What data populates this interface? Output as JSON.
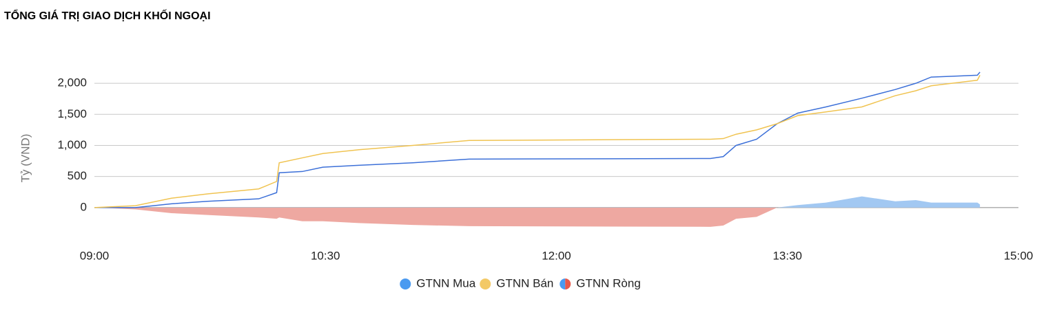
{
  "chart_data": {
    "type": "line",
    "title": "TỔNG GIÁ TRỊ GIAO DỊCH KHỐI NGOẠI",
    "y_label": "Tỷ (VND)",
    "x": [
      540,
      556,
      570,
      584,
      604,
      611,
      612,
      621,
      629,
      643,
      664,
      686,
      780,
      785,
      790,
      798,
      806,
      814,
      825,
      839,
      852,
      860,
      866,
      884,
      885
    ],
    "series": [
      {
        "name": "GTNN Mua",
        "type": "line",
        "color": "#3b6fd8",
        "legend_color": "#4a9af0",
        "values": [
          0,
          0,
          60,
          100,
          140,
          240,
          560,
          580,
          650,
          680,
          720,
          780,
          790,
          820,
          1000,
          1100,
          1350,
          1520,
          1620,
          1760,
          1900,
          2000,
          2100,
          2130,
          2180
        ]
      },
      {
        "name": "GTNN Bán",
        "type": "line",
        "color": "#f0c350",
        "legend_color": "#f3c966",
        "values": [
          0,
          30,
          150,
          220,
          300,
          420,
          720,
          800,
          870,
          930,
          1000,
          1080,
          1100,
          1110,
          1180,
          1250,
          1350,
          1480,
          1540,
          1620,
          1800,
          1880,
          1960,
          2050,
          2130
        ]
      },
      {
        "name": "GTNN Ròng",
        "type": "area",
        "color": "#a2c8f2",
        "negative_color": "#eea8a1",
        "legend_color": "#4a9af0",
        "legend_negative_color": "#e8584a",
        "values": [
          0,
          -30,
          -90,
          -120,
          -160,
          -180,
          -160,
          -220,
          -220,
          -250,
          -280,
          -300,
          -310,
          -290,
          -180,
          -150,
          0,
          40,
          80,
          180,
          100,
          120,
          80,
          80,
          50
        ]
      }
    ],
    "xlim": [
      540,
      900
    ],
    "xticks": [
      {
        "value": 540,
        "label": "09:00"
      },
      {
        "value": 630,
        "label": "10:30"
      },
      {
        "value": 720,
        "label": "12:00"
      },
      {
        "value": 810,
        "label": "13:30"
      },
      {
        "value": 900,
        "label": "15:00"
      }
    ],
    "ylim": [
      -500,
      2400
    ],
    "yticks": [
      0,
      500,
      {
        "value": 1000,
        "label": "1,000"
      },
      {
        "value": 1500,
        "label": "1,500"
      },
      {
        "value": 2000,
        "label": "2,000"
      }
    ],
    "grid": true,
    "legend": "bottom"
  }
}
